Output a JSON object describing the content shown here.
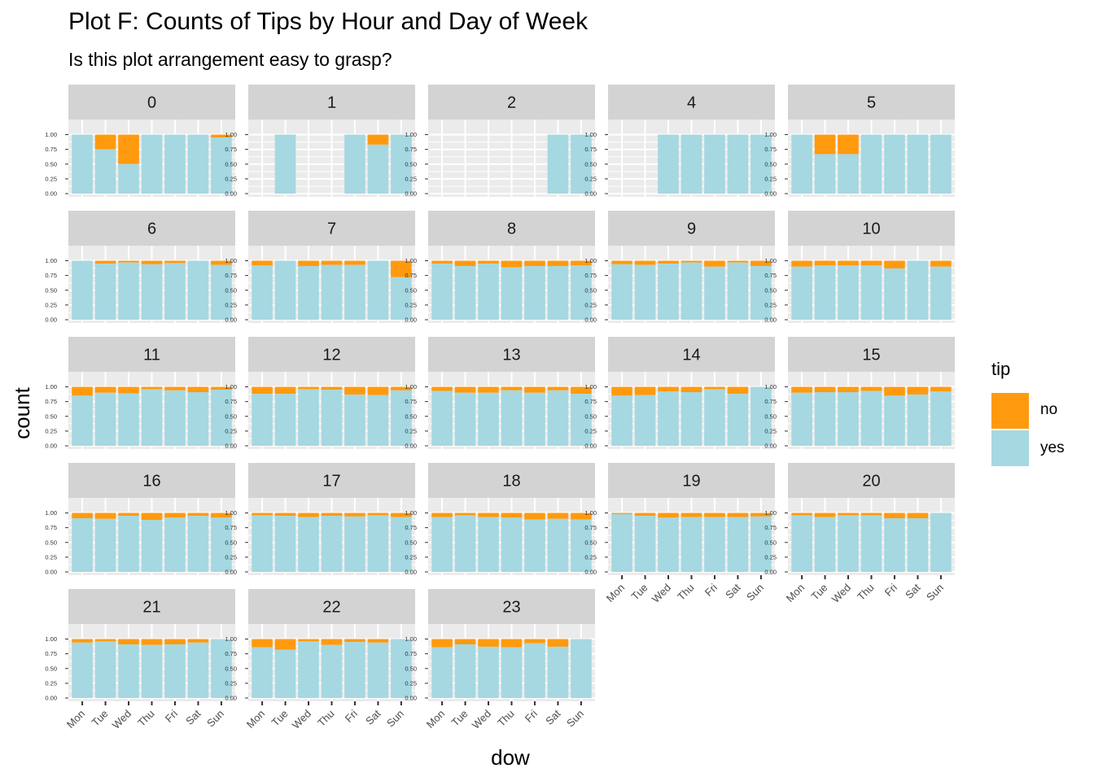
{
  "title": "Plot F: Counts of Tips by Hour and Day of Week",
  "subtitle": "Is this plot arrangement easy to grasp?",
  "colors": {
    "no": "#ff9a0e",
    "yes": "#a5d8e1",
    "strip": "#d3d3d3",
    "panel": "#ebebeb",
    "grid": "#ffffff"
  },
  "chart_data": {
    "type": "bar",
    "stacked": "fill",
    "xlabel": "dow",
    "ylabel": "count",
    "categories": [
      "Mon",
      "Tue",
      "Wed",
      "Thu",
      "Fri",
      "Sat",
      "Sun"
    ],
    "yticks": [
      "0.00",
      "0.25",
      "0.50",
      "0.75",
      "1.00"
    ],
    "ylim": [
      0,
      1
    ],
    "grid": true,
    "legend": {
      "title": "tip",
      "position": "right",
      "entries": [
        "no",
        "yes"
      ]
    },
    "facets": [
      {
        "label": "0",
        "yes": [
          1.0,
          0.75,
          0.5,
          1.0,
          1.0,
          1.0,
          0.95
        ]
      },
      {
        "label": "1",
        "yes": [
          null,
          1.0,
          null,
          null,
          1.0,
          0.83,
          1.0
        ]
      },
      {
        "label": "2",
        "yes": [
          null,
          null,
          null,
          null,
          null,
          1.0,
          1.0
        ]
      },
      {
        "label": "4",
        "yes": [
          null,
          null,
          1.0,
          1.0,
          1.0,
          1.0,
          1.0
        ]
      },
      {
        "label": "5",
        "yes": [
          1.0,
          0.67,
          0.67,
          1.0,
          1.0,
          1.0,
          1.0
        ]
      },
      {
        "label": "6",
        "yes": [
          1.0,
          0.95,
          0.97,
          0.94,
          0.96,
          1.0,
          0.93
        ]
      },
      {
        "label": "7",
        "yes": [
          0.92,
          1.0,
          0.91,
          0.93,
          0.93,
          1.0,
          0.72
        ]
      },
      {
        "label": "8",
        "yes": [
          0.95,
          0.91,
          0.95,
          0.89,
          0.91,
          0.91,
          0.92
        ]
      },
      {
        "label": "9",
        "yes": [
          0.94,
          0.93,
          0.95,
          0.97,
          0.9,
          0.97,
          0.91
        ]
      },
      {
        "label": "10",
        "yes": [
          0.9,
          0.92,
          0.92,
          0.92,
          0.87,
          1.0,
          0.9
        ]
      },
      {
        "label": "11",
        "yes": [
          0.85,
          0.9,
          0.89,
          0.96,
          0.94,
          0.91,
          0.95
        ]
      },
      {
        "label": "12",
        "yes": [
          0.88,
          0.88,
          0.96,
          0.95,
          0.87,
          0.86,
          0.94
        ]
      },
      {
        "label": "13",
        "yes": [
          0.93,
          0.9,
          0.9,
          0.94,
          0.9,
          0.94,
          0.88
        ]
      },
      {
        "label": "14",
        "yes": [
          0.85,
          0.86,
          0.92,
          0.91,
          0.96,
          0.88,
          1.0
        ]
      },
      {
        "label": "15",
        "yes": [
          0.9,
          0.91,
          0.91,
          0.93,
          0.85,
          0.87,
          0.92
        ]
      },
      {
        "label": "16",
        "yes": [
          0.91,
          0.9,
          0.95,
          0.88,
          0.92,
          0.95,
          0.92
        ]
      },
      {
        "label": "17",
        "yes": [
          0.96,
          0.95,
          0.93,
          0.95,
          0.94,
          0.96,
          0.93
        ]
      },
      {
        "label": "18",
        "yes": [
          0.93,
          0.96,
          0.93,
          0.92,
          0.89,
          0.9,
          0.89
        ]
      },
      {
        "label": "19",
        "yes": [
          0.98,
          0.95,
          0.92,
          0.93,
          0.93,
          0.93,
          0.94
        ]
      },
      {
        "label": "20",
        "yes": [
          0.96,
          0.93,
          0.96,
          0.96,
          0.91,
          0.91,
          1.0
        ]
      },
      {
        "label": "21",
        "yes": [
          0.94,
          0.96,
          0.91,
          0.9,
          0.91,
          0.94,
          1.0
        ]
      },
      {
        "label": "22",
        "yes": [
          0.86,
          0.82,
          0.96,
          0.9,
          0.95,
          0.94,
          1.0
        ]
      },
      {
        "label": "23",
        "yes": [
          0.86,
          0.91,
          0.87,
          0.86,
          0.93,
          0.87,
          1.0
        ]
      }
    ]
  }
}
